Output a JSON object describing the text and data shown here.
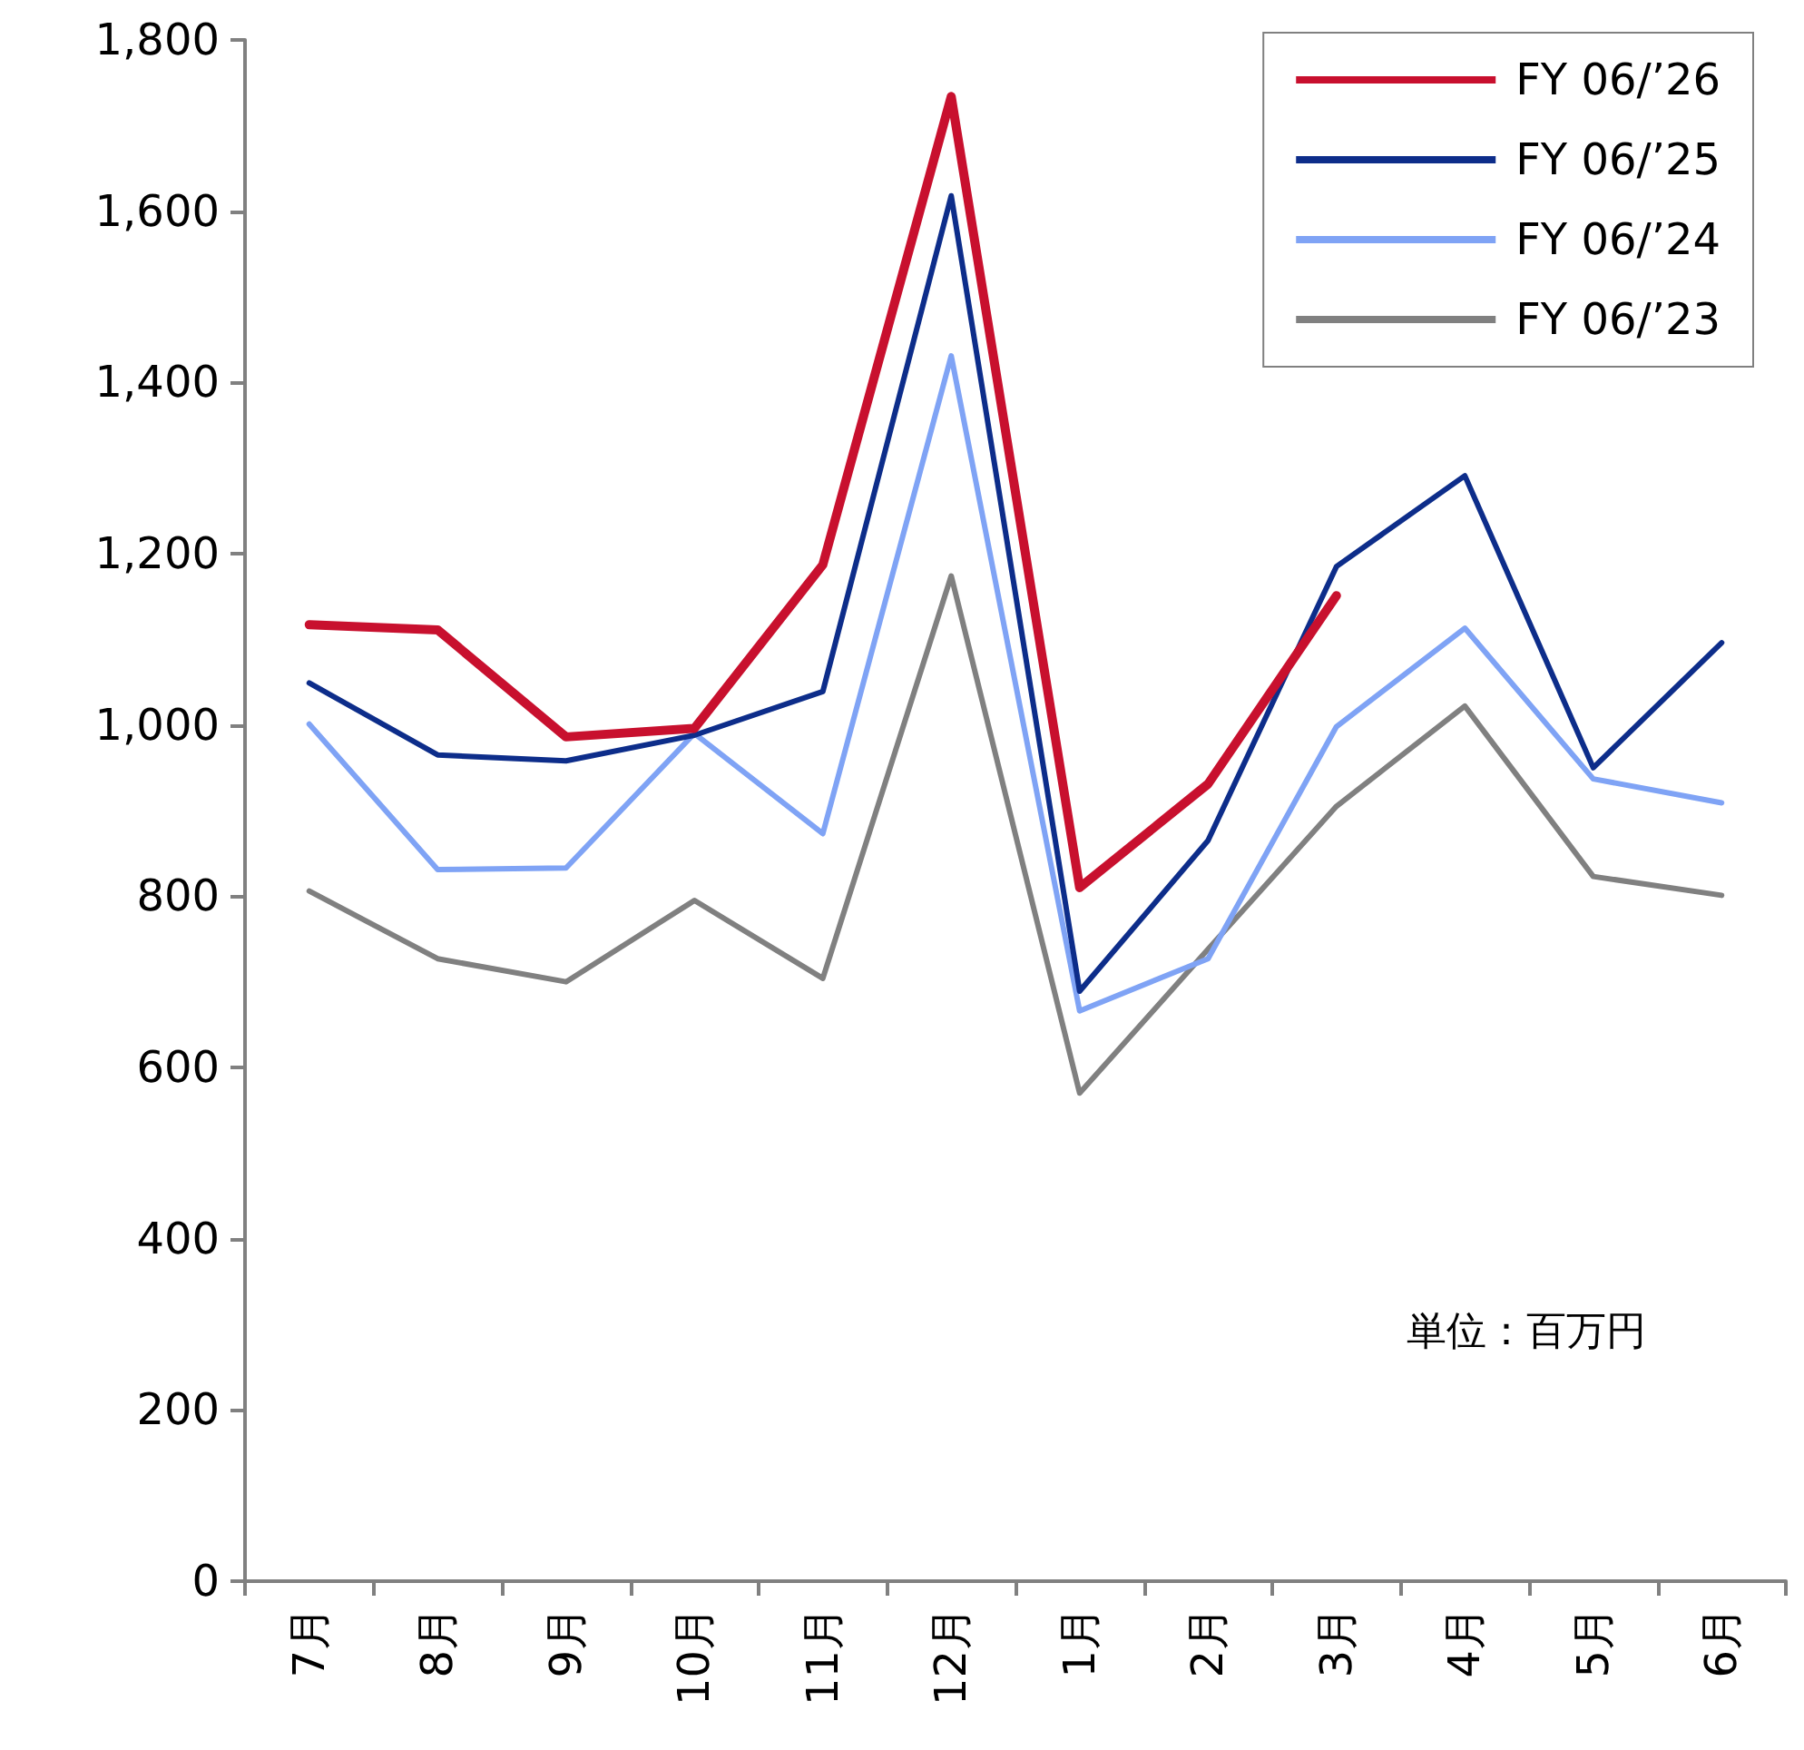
{
  "chart_data": {
    "type": "line",
    "categories": [
      "7月",
      "8月",
      "9月",
      "10月",
      "11月",
      "12月",
      "1月",
      "2月",
      "3月",
      "4月",
      "5月",
      "6月"
    ],
    "series": [
      {
        "name": "FY 06/’26",
        "color": "#c8102e",
        "values": [
          1117,
          1111,
          986,
          996,
          1187,
          1734,
          810,
          931,
          1151,
          null,
          null,
          null
        ]
      },
      {
        "name": "FY 06/’25",
        "color": "#0d2d8a",
        "values": [
          1049,
          965,
          958,
          988,
          1039,
          1618,
          689,
          865,
          1185,
          1291,
          950,
          1096
        ]
      },
      {
        "name": "FY 06/’24",
        "color": "#7fa3f5",
        "values": [
          1001,
          831,
          833,
          990,
          873,
          1431,
          666,
          727,
          998,
          1113,
          937,
          909
        ]
      },
      {
        "name": "FY 06/’23",
        "color": "#808080",
        "values": [
          806,
          727,
          700,
          795,
          704,
          1174,
          570,
          738,
          905,
          1022,
          823,
          801
        ]
      }
    ],
    "ylim": [
      0,
      1800
    ],
    "yticks": [
      0,
      200,
      400,
      600,
      800,
      {
        "value": 1000,
        "label": "1,000"
      },
      {
        "value": 1200,
        "label": "1,200"
      },
      {
        "value": 1400,
        "label": "1,400"
      },
      {
        "value": 1600,
        "label": "1,600"
      },
      {
        "value": 1800,
        "label": "1,800"
      }
    ],
    "grid": false,
    "legend": "top right",
    "marker": "none",
    "line_style": "solid",
    "annotations": [
      "単位：百万円"
    ]
  }
}
